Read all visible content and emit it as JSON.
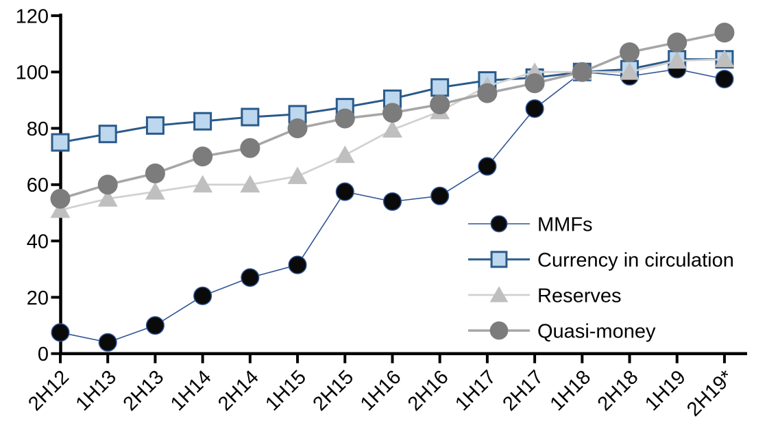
{
  "chart_data": {
    "type": "line",
    "title": "",
    "subtitle": "",
    "xlabel": "",
    "ylabel": "",
    "grid": "off",
    "categories": [
      "2H12",
      "1H13",
      "2H13",
      "1H14",
      "2H14",
      "1H15",
      "2H15",
      "1H16",
      "2H16",
      "1H17",
      "2H17",
      "1H18",
      "2H18",
      "1H19",
      "2H19*"
    ],
    "y_axis": {
      "min": 0,
      "max": 120,
      "step": 20,
      "tick_labels": [
        "0",
        "20",
        "40",
        "60",
        "80",
        "100",
        "120"
      ]
    },
    "x_axis": {
      "tick_labels": [
        "2H12",
        "1H13",
        "2H13",
        "1H14",
        "2H14",
        "1H15",
        "2H15",
        "1H16",
        "2H16",
        "1H17",
        "2H17",
        "1H18",
        "2H18",
        "1H19",
        "2H19*"
      ],
      "label_rotation_deg": -45
    },
    "series": [
      {
        "name": "MMFs",
        "marker": "circle",
        "marker_fill": "#0a0a0a",
        "marker_stroke": "#2f5496",
        "marker_stroke_width": 1.5,
        "marker_size": 27,
        "line_color": "#2f5496",
        "line_width": 1.6,
        "values": [
          7.5,
          4,
          10,
          20.5,
          27,
          31.5,
          57.5,
          54,
          56,
          66.5,
          87,
          100,
          98.5,
          101,
          97.5
        ]
      },
      {
        "name": "Currency in circulation",
        "marker": "square",
        "marker_fill": "#bdd7ee",
        "marker_stroke": "#2a5a8a",
        "marker_stroke_width": 3,
        "marker_size": 27,
        "line_color": "#2a5a8a",
        "line_width": 3,
        "values": [
          75,
          78,
          81,
          82.5,
          84,
          85,
          87.5,
          90.5,
          94.5,
          97,
          98,
          100,
          101,
          104.5,
          104.5
        ]
      },
      {
        "name": "Reserves",
        "marker": "triangle",
        "marker_fill": "#bfbfbf",
        "marker_stroke": "none",
        "marker_stroke_width": 0,
        "marker_size": 28,
        "line_color": "#d2d0d0",
        "line_width": 2.8,
        "values": [
          51,
          55,
          57.5,
          60,
          60,
          63,
          70.5,
          79.5,
          86,
          95,
          100,
          100,
          100,
          104,
          104.5
        ]
      },
      {
        "name": "Quasi-money",
        "marker": "circle",
        "marker_fill": "#7c7c7c",
        "marker_stroke": "none",
        "marker_stroke_width": 0,
        "marker_size": 29,
        "line_color": "#a6a6a6",
        "line_width": 3.6,
        "values": [
          55,
          60,
          64,
          70,
          73,
          80,
          83.5,
          85.5,
          88.5,
          92.5,
          96,
          100,
          107,
          110.5,
          114
        ]
      }
    ],
    "legend": {
      "position": "right-center",
      "items": [
        "MMFs",
        "Currency in circulation",
        "Reserves",
        "Quasi-money"
      ]
    },
    "colors": {
      "axis": "#000000",
      "text": "#000000",
      "background": "#ffffff"
    }
  }
}
